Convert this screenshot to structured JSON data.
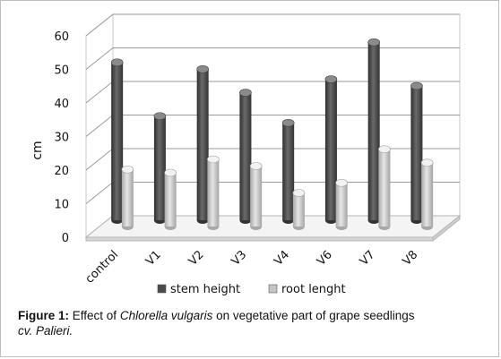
{
  "chart_data": {
    "type": "bar",
    "categories": [
      "control",
      "V1",
      "V2",
      "V3",
      "V4",
      "V6",
      "V7",
      "V8"
    ],
    "series": [
      {
        "name": "stem height",
        "values": [
          47,
          31,
          45,
          38,
          29,
          42,
          53,
          40
        ],
        "color": "#4a4a4a"
      },
      {
        "name": "root lenght",
        "values": [
          17,
          16,
          20,
          18,
          10,
          13,
          23,
          19
        ],
        "color": "#bdbdbd"
      }
    ],
    "ylabel": "cm",
    "xlabel": "",
    "ylim": [
      0,
      60
    ],
    "yticks": [
      0,
      10,
      20,
      30,
      40,
      50,
      60
    ],
    "grid": true,
    "legend": "bottom"
  },
  "caption": {
    "label": "Figure 1:",
    "text_before": "Effect of",
    "species": "Chlorella vulgaris",
    "text_after": "on vegetative part of grape seedlings",
    "cultivar": "cv. Palieri."
  }
}
